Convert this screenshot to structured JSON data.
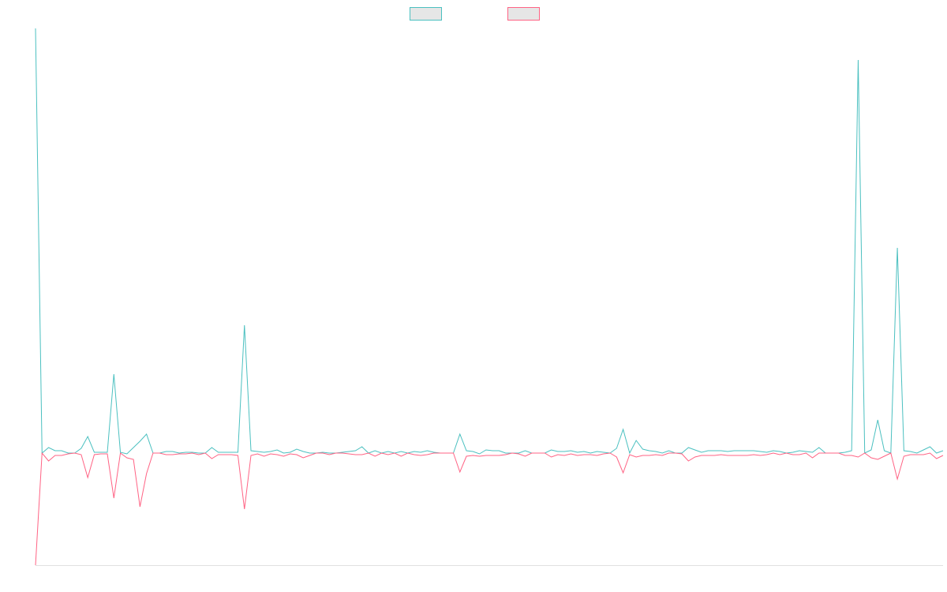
{
  "chart_data": {
    "type": "line",
    "legend": "top",
    "ylim": [
      -28.4,
      107.6
    ],
    "series": [
      {
        "color": "#4bc0c0",
        "values": [
          107.6,
          0,
          1.4,
          0.6,
          0.6,
          0,
          0,
          1.2,
          4.2,
          0.2,
          0.2,
          0.2,
          20,
          0.2,
          -0.2,
          1.4,
          3,
          4.8,
          0,
          0,
          0.4,
          0.4,
          0,
          0.2,
          0.2,
          0,
          0,
          1.4,
          0.2,
          0.2,
          0.2,
          0.2,
          32.4,
          0.6,
          0.4,
          0.2,
          0.4,
          0.8,
          0,
          0.2,
          1.0,
          0.4,
          0,
          0,
          0.2,
          0,
          0,
          0.2,
          0.4,
          0.6,
          1.6,
          0,
          0.6,
          0,
          0.4,
          0,
          0.4,
          0,
          0.4,
          0.2,
          0.6,
          0.2,
          0,
          0,
          0,
          4.8,
          0.6,
          0.4,
          -0.2,
          0.8,
          0.6,
          0.6,
          0,
          0,
          0,
          0.6,
          0,
          0,
          0,
          0.8,
          0.4,
          0.4,
          0.6,
          0.2,
          0.4,
          0,
          0.4,
          0.2,
          0,
          1.2,
          6,
          0,
          3.2,
          1,
          0.6,
          0.4,
          0,
          0.6,
          0,
          0,
          1.4,
          0.8,
          0.2,
          0.6,
          0.6,
          0.6,
          0.4,
          0.6,
          0.6,
          0.6,
          0.6,
          0.4,
          0.2,
          0.6,
          0.4,
          0,
          0.2,
          0.6,
          0.4,
          0.2,
          1.4,
          0,
          0,
          0,
          0.2,
          0.6,
          99.6,
          0,
          0.8,
          8.4,
          0.6,
          0,
          52,
          0.6,
          0.4,
          0,
          0.8,
          1.6,
          0,
          0.6
        ]
      },
      {
        "color": "#ff6384",
        "values": [
          -28.4,
          0,
          -2,
          -0.6,
          -0.6,
          -0.2,
          0,
          -0.4,
          -6.2,
          -0.4,
          -0.2,
          -0.2,
          -11.4,
          0,
          -1.2,
          -1.6,
          -13.6,
          -5.2,
          0,
          0,
          -0.4,
          -0.4,
          -0.2,
          -0.2,
          0,
          -0.4,
          0,
          -1.4,
          -0.4,
          -0.4,
          -0.4,
          -0.6,
          -14.2,
          -0.6,
          -0.2,
          -0.8,
          -0.2,
          -0.4,
          -0.8,
          -0.2,
          -0.4,
          -1.2,
          -0.6,
          0,
          0,
          -0.4,
          0,
          0,
          -0.2,
          -0.4,
          -0.4,
          0,
          -0.8,
          0,
          -0.4,
          0,
          -0.8,
          0,
          -0.4,
          -0.6,
          -0.4,
          0,
          0,
          0,
          0,
          -4.8,
          -0.8,
          -0.6,
          -0.8,
          -0.6,
          -0.6,
          -0.6,
          -0.4,
          0,
          -0.2,
          -0.8,
          0,
          0,
          0,
          -1,
          -0.4,
          -0.6,
          -0.2,
          -0.6,
          -0.4,
          -0.4,
          -0.6,
          -0.2,
          0,
          -1,
          -5,
          -0.4,
          -1,
          -0.6,
          -0.6,
          -0.4,
          -0.6,
          0,
          0,
          -0.2,
          -2,
          -1,
          -0.6,
          -0.6,
          -0.6,
          -0.4,
          -0.6,
          -0.6,
          -0.6,
          -0.6,
          -0.4,
          -0.6,
          -0.4,
          0,
          -0.4,
          0,
          -0.4,
          -0.4,
          0,
          -1.2,
          0,
          0,
          0,
          0,
          -0.6,
          -0.6,
          -1,
          0,
          -1.2,
          -1.6,
          -0.8,
          0,
          -6.6,
          -0.8,
          -0.4,
          -0.4,
          -0.4,
          0,
          -1.4,
          -0.6
        ]
      }
    ]
  }
}
